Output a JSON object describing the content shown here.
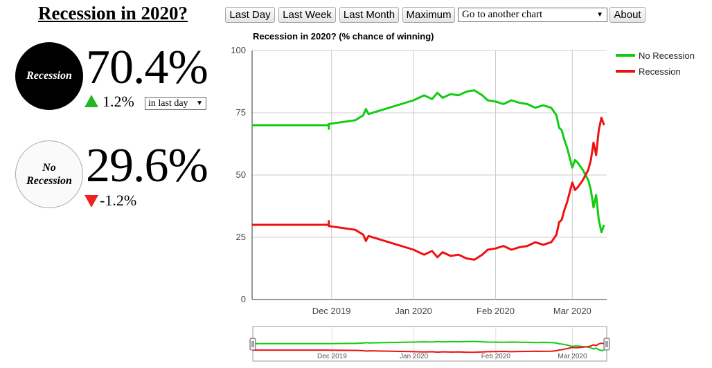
{
  "page": {
    "title": "Recession in 2020?"
  },
  "contracts": [
    {
      "label": "Recession",
      "percent": "70.4%",
      "change": "1.2%",
      "direction": "up"
    },
    {
      "label_line1": "No",
      "label_line2": "Recession",
      "percent": "29.6%",
      "change": "-1.2%",
      "direction": "down"
    }
  ],
  "period_select": {
    "value": "in last day"
  },
  "toolbar": {
    "last_day": "Last Day",
    "last_week": "Last Week",
    "last_month": "Last Month",
    "maximum": "Maximum",
    "goto": "Go to another chart",
    "about": "About"
  },
  "colors": {
    "no_recession": "#11cc11",
    "recession": "#ee1111",
    "up_arrow": "#22b622",
    "down_arrow": "#ee2222"
  },
  "chart_data": {
    "type": "line",
    "title": "Recession in 2020? (% chance of winning)",
    "ylim": [
      0,
      100
    ],
    "yticks": [
      0,
      25,
      50,
      75,
      100
    ],
    "xlim": [
      "2019-11-01",
      "2020-03-14"
    ],
    "xticks": [
      {
        "date": "2019-12-01",
        "label": "Dec 2019"
      },
      {
        "date": "2020-01-01",
        "label": "Jan 2020"
      },
      {
        "date": "2020-02-01",
        "label": "Feb 2020"
      },
      {
        "date": "2020-03-01",
        "label": "Mar 2020"
      }
    ],
    "legend_position": "right",
    "series": [
      {
        "name": "No Recession",
        "color": "#11cc11",
        "points": [
          [
            "2019-11-01",
            70
          ],
          [
            "2019-11-30",
            70
          ],
          [
            "2019-11-30",
            68.5
          ],
          [
            "2019-11-30",
            70.5
          ],
          [
            "2019-12-10",
            72
          ],
          [
            "2019-12-13",
            74
          ],
          [
            "2019-12-14",
            76.5
          ],
          [
            "2019-12-15",
            74.5
          ],
          [
            "2020-01-01",
            80
          ],
          [
            "2020-01-03",
            81
          ],
          [
            "2020-01-05",
            82
          ],
          [
            "2020-01-08",
            80.5
          ],
          [
            "2020-01-10",
            83
          ],
          [
            "2020-01-12",
            81
          ],
          [
            "2020-01-15",
            82.5
          ],
          [
            "2020-01-18",
            82
          ],
          [
            "2020-01-21",
            83.5
          ],
          [
            "2020-01-24",
            84
          ],
          [
            "2020-01-27",
            82
          ],
          [
            "2020-01-29",
            80
          ],
          [
            "2020-02-01",
            79.5
          ],
          [
            "2020-02-04",
            78.5
          ],
          [
            "2020-02-07",
            80
          ],
          [
            "2020-02-10",
            79
          ],
          [
            "2020-02-13",
            78.5
          ],
          [
            "2020-02-16",
            77
          ],
          [
            "2020-02-19",
            78
          ],
          [
            "2020-02-22",
            77
          ],
          [
            "2020-02-24",
            74
          ],
          [
            "2020-02-25",
            69
          ],
          [
            "2020-02-26",
            68
          ],
          [
            "2020-02-27",
            64
          ],
          [
            "2020-02-28",
            61
          ],
          [
            "2020-02-29",
            57
          ],
          [
            "2020-03-01",
            53
          ],
          [
            "2020-03-02",
            56
          ],
          [
            "2020-03-03",
            55
          ],
          [
            "2020-03-05",
            52
          ],
          [
            "2020-03-07",
            48
          ],
          [
            "2020-03-08",
            44
          ],
          [
            "2020-03-09",
            37
          ],
          [
            "2020-03-10",
            42
          ],
          [
            "2020-03-11",
            32
          ],
          [
            "2020-03-12",
            27
          ],
          [
            "2020-03-13",
            30
          ]
        ]
      },
      {
        "name": "Recession",
        "color": "#ee1111",
        "points": [
          [
            "2019-11-01",
            30
          ],
          [
            "2019-11-30",
            30
          ],
          [
            "2019-11-30",
            31.5
          ],
          [
            "2019-11-30",
            29.5
          ],
          [
            "2019-12-10",
            28
          ],
          [
            "2019-12-13",
            26
          ],
          [
            "2019-12-14",
            23.5
          ],
          [
            "2019-12-15",
            25.5
          ],
          [
            "2020-01-01",
            20
          ],
          [
            "2020-01-03",
            19
          ],
          [
            "2020-01-05",
            18
          ],
          [
            "2020-01-08",
            19.5
          ],
          [
            "2020-01-10",
            17
          ],
          [
            "2020-01-12",
            19
          ],
          [
            "2020-01-15",
            17.5
          ],
          [
            "2020-01-18",
            18
          ],
          [
            "2020-01-21",
            16.5
          ],
          [
            "2020-01-24",
            16
          ],
          [
            "2020-01-27",
            18
          ],
          [
            "2020-01-29",
            20
          ],
          [
            "2020-02-01",
            20.5
          ],
          [
            "2020-02-04",
            21.5
          ],
          [
            "2020-02-07",
            20
          ],
          [
            "2020-02-10",
            21
          ],
          [
            "2020-02-13",
            21.5
          ],
          [
            "2020-02-16",
            23
          ],
          [
            "2020-02-19",
            22
          ],
          [
            "2020-02-22",
            23
          ],
          [
            "2020-02-24",
            26
          ],
          [
            "2020-02-25",
            31
          ],
          [
            "2020-02-26",
            32
          ],
          [
            "2020-02-27",
            36
          ],
          [
            "2020-02-28",
            39
          ],
          [
            "2020-02-29",
            43
          ],
          [
            "2020-03-01",
            47
          ],
          [
            "2020-03-02",
            44
          ],
          [
            "2020-03-03",
            45
          ],
          [
            "2020-03-05",
            48
          ],
          [
            "2020-03-07",
            52
          ],
          [
            "2020-03-08",
            56
          ],
          [
            "2020-03-09",
            63
          ],
          [
            "2020-03-10",
            58
          ],
          [
            "2020-03-11",
            68
          ],
          [
            "2020-03-12",
            73
          ],
          [
            "2020-03-13",
            70
          ]
        ]
      }
    ]
  }
}
